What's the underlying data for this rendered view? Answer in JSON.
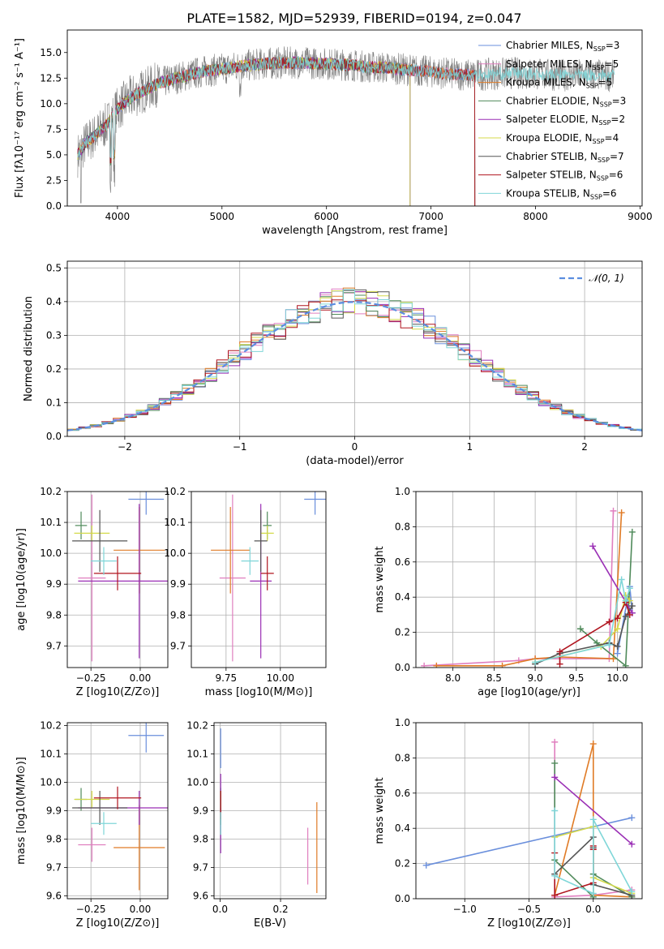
{
  "figure_title": "PLATE=1582, MJD=52939, FIBERID=0194, z=0.047",
  "colors": {
    "Chabrier MILES": "#6a8fdc",
    "Salpeter MILES": "#e07fbf",
    "Kroupa MILES": "#e07b26",
    "Chabrier ELODIE": "#4f8a5a",
    "Salpeter ELODIE": "#9a2fb5",
    "Kroupa ELODIE": "#d4d94a",
    "Chabrier STELIB": "#555555",
    "Salpeter STELIB": "#b0151f",
    "Kroupa STELIB": "#7fd6d8"
  },
  "chart_data": [
    {
      "id": "spectrum",
      "type": "line",
      "title": "PLATE=1582, MJD=52939, FIBERID=0194, z=0.047",
      "xlabel": "wavelength [Angstrom, rest frame]",
      "ylabel": "Flux [fλ10⁻¹⁷ erg cm⁻² s⁻¹ A⁻¹]",
      "xlim": [
        3520,
        9020
      ],
      "ylim": [
        0,
        17.2
      ],
      "xticks": [
        4000,
        5000,
        6000,
        7000,
        8000,
        9000
      ],
      "yticks": [
        0.0,
        2.5,
        5.0,
        7.5,
        10.0,
        12.5,
        15.0
      ],
      "grid": false,
      "legend_position": "right",
      "legend": [
        "Chabrier MILES, N_SSP=3",
        "Salpeter MILES, N_SSP=5",
        "Kroupa MILES, N_SSP=5",
        "Chabrier ELODIE, N_SSP=3",
        "Salpeter ELODIE, N_SSP=2",
        "Kroupa ELODIE, N_SSP=4",
        "Chabrier STELIB, N_SSP=7",
        "Salpeter STELIB, N_SSP=6",
        "Kroupa STELIB, N_SSP=6"
      ],
      "continuum": [
        [
          3620,
          5.0
        ],
        [
          3700,
          6.2
        ],
        [
          3800,
          7.0
        ],
        [
          3900,
          8.0
        ],
        [
          4000,
          9.5
        ],
        [
          4100,
          10.4
        ],
        [
          4200,
          11.0
        ],
        [
          4300,
          11.5
        ],
        [
          4400,
          12.0
        ],
        [
          4600,
          12.6
        ],
        [
          4800,
          13.1
        ],
        [
          5000,
          13.4
        ],
        [
          5200,
          13.7
        ],
        [
          5400,
          13.9
        ],
        [
          5600,
          14.0
        ],
        [
          5800,
          14.0
        ],
        [
          6000,
          13.9
        ],
        [
          6200,
          13.8
        ],
        [
          6400,
          13.6
        ],
        [
          6600,
          13.5
        ],
        [
          6800,
          13.3
        ],
        [
          7000,
          13.1
        ],
        [
          7200,
          12.9
        ],
        [
          7400,
          12.8
        ],
        [
          7600,
          12.9
        ],
        [
          7800,
          13.0
        ],
        [
          8000,
          12.9
        ],
        [
          8200,
          12.8
        ],
        [
          8400,
          12.8
        ],
        [
          8600,
          12.8
        ],
        [
          8760,
          12.7
        ]
      ],
      "data_range": [
        3620,
        8760
      ],
      "model_ranges": [
        [
          3620,
          7420
        ],
        [
          3620,
          7420
        ],
        [
          3620,
          7420
        ],
        [
          3620,
          6800
        ],
        [
          3620,
          6800
        ],
        [
          3620,
          6800
        ],
        [
          3620,
          7420
        ],
        [
          3620,
          7420
        ],
        [
          3620,
          8760
        ]
      ]
    },
    {
      "id": "residuals",
      "type": "histogram",
      "xlabel": "(data-model)/error",
      "ylabel": "Normed distribution",
      "xlim": [
        -2.5,
        2.5
      ],
      "ylim": [
        0,
        0.52
      ],
      "xticks": [
        -2,
        -1,
        0,
        1,
        2
      ],
      "yticks": [
        0.0,
        0.1,
        0.2,
        0.3,
        0.4,
        0.5
      ],
      "grid": true,
      "legend_position": "top-right",
      "legend": [
        "𝒩(0, 1)"
      ],
      "bin_width": 0.1,
      "bin_start": -2.5,
      "gaussian": {
        "mean": 0,
        "sigma": 1
      }
    },
    {
      "id": "age-Z",
      "type": "errorbar",
      "xlabel": "Z [log10(Z/Z⊙)]",
      "ylabel": "age  [log10(age/yr)]",
      "xlim": [
        -0.37,
        0.14
      ],
      "ylim": [
        9.63,
        10.2
      ],
      "xticks": [
        -0.25,
        0.0
      ],
      "xticklabels": [
        "−0.25",
        "0.00"
      ],
      "yticks": [
        9.7,
        9.8,
        9.9,
        10.0,
        10.1,
        10.2
      ],
      "grid": true,
      "points": [
        {
          "model": "Chabrier MILES",
          "x": 0.03,
          "y": 10.175,
          "xerr": 0.09,
          "yerr": 0.05
        },
        {
          "model": "Salpeter MILES",
          "x": -0.245,
          "y": 9.92,
          "xerr": 0.07,
          "yerr": 0.27
        },
        {
          "model": "Kroupa MILES",
          "x": -0.005,
          "y": 10.01,
          "xerr": 0.13,
          "yerr": 0.14
        },
        {
          "model": "Chabrier ELODIE",
          "x": -0.3,
          "y": 10.09,
          "xerr": 0.03,
          "yerr": 0.045
        },
        {
          "model": "Salpeter ELODIE",
          "x": -0.005,
          "y": 9.91,
          "xerr": 0.31,
          "yerr": 0.25
        },
        {
          "model": "Kroupa ELODIE",
          "x": -0.245,
          "y": 10.065,
          "xerr": 0.09,
          "yerr": 0.025
        },
        {
          "model": "Chabrier STELIB",
          "x": -0.205,
          "y": 10.04,
          "xerr": 0.14,
          "yerr": 0.1
        },
        {
          "model": "Salpeter STELIB",
          "x": -0.115,
          "y": 9.935,
          "xerr": 0.12,
          "yerr": 0.055
        },
        {
          "model": "Kroupa STELIB",
          "x": -0.185,
          "y": 9.975,
          "xerr": 0.065,
          "yerr": 0.045
        }
      ]
    },
    {
      "id": "age-mass",
      "type": "errorbar",
      "xlabel": "mass [log10(M/M⊙)]",
      "ylabel": "",
      "xlim": [
        9.59,
        10.21
      ],
      "ylim": [
        9.63,
        10.2
      ],
      "xticks": [
        9.75,
        10.0
      ],
      "xticklabels": [
        "9.75",
        "10.00"
      ],
      "yticks": [
        9.7,
        9.8,
        9.9,
        10.0,
        10.1,
        10.2
      ],
      "grid": true,
      "points": [
        {
          "model": "Chabrier MILES",
          "x": 10.16,
          "y": 10.175,
          "xerr": 0.05,
          "yerr": 0.05
        },
        {
          "model": "Salpeter MILES",
          "x": 9.78,
          "y": 9.92,
          "xerr": 0.06,
          "yerr": 0.27
        },
        {
          "model": "Kroupa MILES",
          "x": 9.77,
          "y": 10.01,
          "xerr": 0.09,
          "yerr": 0.14
        },
        {
          "model": "Chabrier ELODIE",
          "x": 9.94,
          "y": 10.09,
          "xerr": 0.02,
          "yerr": 0.045
        },
        {
          "model": "Salpeter ELODIE",
          "x": 9.91,
          "y": 9.91,
          "xerr": 0.05,
          "yerr": 0.25
        },
        {
          "model": "Kroupa ELODIE",
          "x": 9.94,
          "y": 10.065,
          "xerr": 0.03,
          "yerr": 0.025
        },
        {
          "model": "Chabrier STELIB",
          "x": 9.91,
          "y": 10.04,
          "xerr": 0.03,
          "yerr": 0.1
        },
        {
          "model": "Salpeter STELIB",
          "x": 9.94,
          "y": 9.935,
          "xerr": 0.03,
          "yerr": 0.055
        },
        {
          "model": "Kroupa STELIB",
          "x": 9.86,
          "y": 9.975,
          "xerr": 0.04,
          "yerr": 0.045
        }
      ]
    },
    {
      "id": "mw-age",
      "type": "line",
      "xlabel": "age  [log10(age/yr)]",
      "ylabel": "mass weight",
      "xlim": [
        7.55,
        10.3
      ],
      "ylim": [
        0,
        1.0
      ],
      "xticks": [
        8.0,
        8.5,
        9.0,
        9.5,
        10.0
      ],
      "xticklabels": [
        "8.0",
        "8.5",
        "9.0",
        "9.5",
        "10.0"
      ],
      "yticks": [
        0.0,
        0.2,
        0.4,
        0.6,
        0.8,
        1.0
      ],
      "grid": true,
      "series": [
        {
          "model": "Chabrier MILES",
          "points": [
            [
              10.0,
              0.08
            ],
            [
              10.15,
              0.46
            ],
            [
              10.18,
              0.31
            ]
          ]
        },
        {
          "model": "Salpeter MILES",
          "points": [
            [
              7.65,
              0.01
            ],
            [
              8.8,
              0.04
            ],
            [
              9.0,
              0.05
            ],
            [
              9.9,
              0.05
            ],
            [
              9.95,
              0.89
            ]
          ]
        },
        {
          "model": "Kroupa MILES",
          "points": [
            [
              7.8,
              0.01
            ],
            [
              8.6,
              0.01
            ],
            [
              9.0,
              0.05
            ],
            [
              9.3,
              0.06
            ],
            [
              9.95,
              0.05
            ],
            [
              10.05,
              0.88
            ]
          ]
        },
        {
          "model": "Chabrier ELODIE",
          "points": [
            [
              9.55,
              0.22
            ],
            [
              9.75,
              0.14
            ],
            [
              10.1,
              0.01
            ],
            [
              10.18,
              0.77
            ]
          ]
        },
        {
          "model": "Salpeter ELODIE",
          "points": [
            [
              9.7,
              0.69
            ],
            [
              10.18,
              0.31
            ]
          ]
        },
        {
          "model": "Kroupa ELODIE",
          "points": [
            [
              9.0,
              0.03
            ],
            [
              9.8,
              0.12
            ],
            [
              10.0,
              0.22
            ],
            [
              10.1,
              0.41
            ],
            [
              10.15,
              0.38
            ]
          ]
        },
        {
          "model": "Chabrier STELIB",
          "points": [
            [
              9.0,
              0.02
            ],
            [
              9.3,
              0.08
            ],
            [
              9.9,
              0.14
            ],
            [
              10.0,
              0.12
            ],
            [
              10.1,
              0.29
            ],
            [
              10.18,
              0.35
            ]
          ]
        },
        {
          "model": "Salpeter STELIB",
          "points": [
            [
              9.3,
              0.02
            ],
            [
              9.3,
              0.09
            ],
            [
              9.9,
              0.26
            ],
            [
              10.0,
              0.28
            ],
            [
              10.1,
              0.37
            ],
            [
              10.15,
              0.3
            ]
          ]
        },
        {
          "model": "Kroupa STELIB",
          "points": [
            [
              9.0,
              0.03
            ],
            [
              9.9,
              0.13
            ],
            [
              10.05,
              0.5
            ],
            [
              10.1,
              0.38
            ],
            [
              10.15,
              0.45
            ]
          ]
        }
      ]
    },
    {
      "id": "mass-Z",
      "type": "errorbar",
      "xlabel": "Z [log10(Z/Z⊙)]",
      "ylabel": "mass [log10(M/M⊙)]",
      "xlim": [
        -0.37,
        0.14
      ],
      "ylim": [
        9.59,
        10.21
      ],
      "xticks": [
        -0.25,
        0.0
      ],
      "xticklabels": [
        "−0.25",
        "0.00"
      ],
      "yticks": [
        9.6,
        9.7,
        9.8,
        9.9,
        10.0,
        10.1,
        10.2
      ],
      "grid": true,
      "points": [
        {
          "model": "Chabrier MILES",
          "x": 0.03,
          "y": 10.165,
          "xerr": 0.09,
          "yerr": 0.06
        },
        {
          "model": "Salpeter MILES",
          "x": -0.245,
          "y": 9.78,
          "xerr": 0.07,
          "yerr": 0.06
        },
        {
          "model": "Kroupa MILES",
          "x": -0.005,
          "y": 9.77,
          "xerr": 0.13,
          "yerr": 0.15
        },
        {
          "model": "Chabrier ELODIE",
          "x": -0.3,
          "y": 9.94,
          "xerr": 0.03,
          "yerr": 0.04
        },
        {
          "model": "Salpeter ELODIE",
          "x": -0.005,
          "y": 9.91,
          "xerr": 0.31,
          "yerr": 0.06
        },
        {
          "model": "Kroupa ELODIE",
          "x": -0.245,
          "y": 9.94,
          "xerr": 0.09,
          "yerr": 0.03
        },
        {
          "model": "Chabrier STELIB",
          "x": -0.205,
          "y": 9.91,
          "xerr": 0.14,
          "yerr": 0.06
        },
        {
          "model": "Salpeter STELIB",
          "x": -0.115,
          "y": 9.945,
          "xerr": 0.12,
          "yerr": 0.04
        },
        {
          "model": "Kroupa STELIB",
          "x": -0.185,
          "y": 9.855,
          "xerr": 0.065,
          "yerr": 0.04
        }
      ]
    },
    {
      "id": "mass-EBV",
      "type": "errorbar",
      "xlabel": "E(B-V)",
      "ylabel": "",
      "xlim": [
        -0.02,
        0.35
      ],
      "ylim": [
        9.59,
        10.21
      ],
      "xticks": [
        0.0,
        0.2
      ],
      "xticklabels": [
        "0.0",
        "0.2"
      ],
      "yticks": [
        9.6,
        9.7,
        9.8,
        9.9,
        10.0,
        10.1,
        10.2
      ],
      "grid": true,
      "points": [
        {
          "model": "Chabrier MILES",
          "x": 0.002,
          "y": 10.12,
          "xerr": 0,
          "yerr": 0.07
        },
        {
          "model": "Salpeter MILES",
          "x": 0.29,
          "y": 9.74,
          "xerr": 0,
          "yerr": 0.1
        },
        {
          "model": "Kroupa MILES",
          "x": 0.32,
          "y": 9.77,
          "xerr": 0,
          "yerr": 0.16
        },
        {
          "model": "Chabrier ELODIE",
          "x": 0.002,
          "y": 9.94,
          "xerr": 0,
          "yerr": 0.04
        },
        {
          "model": "Salpeter ELODIE",
          "x": 0.002,
          "y": 9.89,
          "xerr": 0,
          "yerr": 0.14
        },
        {
          "model": "Kroupa ELODIE",
          "x": 0.002,
          "y": 9.94,
          "xerr": 0,
          "yerr": 0.03
        },
        {
          "model": "Chabrier STELIB",
          "x": 0.002,
          "y": 9.91,
          "xerr": 0,
          "yerr": 0.06
        },
        {
          "model": "Salpeter STELIB",
          "x": 0.002,
          "y": 9.92,
          "xerr": 0,
          "yerr": 0.05
        },
        {
          "model": "Kroupa STELIB",
          "x": 0.002,
          "y": 9.855,
          "xerr": 0,
          "yerr": 0.04
        }
      ]
    },
    {
      "id": "mw-Z",
      "type": "line",
      "xlabel": "Z [log10(Z/Z⊙)]",
      "ylabel": "mass weight",
      "xlim": [
        -1.38,
        0.38
      ],
      "ylim": [
        0,
        1.0
      ],
      "xticks": [
        -1.0,
        -0.5,
        0.0
      ],
      "xticklabels": [
        "−1.0",
        "−0.5",
        "0.0"
      ],
      "yticks": [
        0.0,
        0.2,
        0.4,
        0.6,
        0.8,
        1.0
      ],
      "grid": true,
      "series": [
        {
          "model": "Chabrier MILES",
          "points": [
            [
              -1.3,
              0.19
            ],
            [
              0.3,
              0.46
            ]
          ]
        },
        {
          "model": "Salpeter MILES",
          "points": [
            [
              -0.3,
              0.89
            ],
            [
              -0.3,
              0.01
            ],
            [
              0.0,
              0.02
            ],
            [
              0.3,
              0.05
            ]
          ]
        },
        {
          "model": "Kroupa MILES",
          "points": [
            [
              -0.3,
              0.02
            ],
            [
              0.0,
              0.88
            ],
            [
              0.0,
              0.02
            ],
            [
              0.3,
              0.01
            ]
          ]
        },
        {
          "model": "Chabrier ELODIE",
          "points": [
            [
              -0.3,
              0.77
            ],
            [
              -0.3,
              0.22
            ],
            [
              0.0,
              0.01
            ],
            [
              0.0,
              0.14
            ],
            [
              0.3,
              0.01
            ]
          ]
        },
        {
          "model": "Salpeter ELODIE",
          "points": [
            [
              -0.3,
              0.69
            ],
            [
              0.3,
              0.31
            ]
          ]
        },
        {
          "model": "Kroupa ELODIE",
          "points": [
            [
              -0.3,
              0.35
            ],
            [
              0.0,
              0.41
            ],
            [
              0.0,
              0.12
            ],
            [
              0.3,
              0.03
            ]
          ]
        },
        {
          "model": "Chabrier STELIB",
          "points": [
            [
              -0.3,
              0.14
            ],
            [
              0.0,
              0.35
            ],
            [
              0.0,
              0.29
            ],
            [
              0.0,
              0.08
            ],
            [
              0.3,
              0.02
            ]
          ]
        },
        {
          "model": "Salpeter STELIB",
          "points": [
            [
              -0.3,
              0.26
            ],
            [
              -0.3,
              0.02
            ],
            [
              0.0,
              0.09
            ],
            [
              0.0,
              0.28
            ],
            [
              0.0,
              0.3
            ]
          ]
        },
        {
          "model": "Kroupa STELIB",
          "points": [
            [
              -0.3,
              0.5
            ],
            [
              -0.3,
              0.13
            ],
            [
              0.0,
              0.03
            ],
            [
              0.0,
              0.45
            ],
            [
              0.3,
              0.04
            ]
          ]
        }
      ]
    }
  ]
}
